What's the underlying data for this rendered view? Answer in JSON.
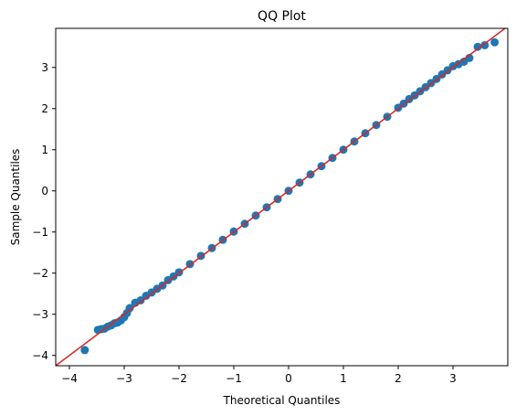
{
  "chart_data": {
    "type": "scatter",
    "title": "QQ Plot",
    "xlabel": "Theoretical Quantiles",
    "ylabel": "Sample Quantiles",
    "xlim": [
      -4.25,
      4.0
    ],
    "ylim": [
      -4.25,
      3.95
    ],
    "xticks": [
      -4,
      -3,
      -2,
      -1,
      0,
      1,
      2,
      3
    ],
    "yticks": [
      -4,
      -3,
      -2,
      -1,
      0,
      1,
      2,
      3
    ],
    "xtick_labels": [
      "−4",
      "−3",
      "−2",
      "−1",
      "0",
      "1",
      "2",
      "3"
    ],
    "ytick_labels": [
      "−4",
      "−3",
      "−2",
      "−1",
      "0",
      "1",
      "2",
      "3"
    ],
    "grid": false,
    "series": [
      {
        "kind": "points",
        "color": "#1f77b4",
        "x": [
          -3.72,
          -3.48,
          -3.42,
          -3.36,
          -3.3,
          -3.24,
          -3.18,
          -3.12,
          -3.06,
          -3.0,
          -2.95,
          -2.9,
          -2.8,
          -2.7,
          -2.6,
          -2.5,
          -2.4,
          -2.3,
          -2.2,
          -2.1,
          -2.0,
          -1.8,
          -1.6,
          -1.4,
          -1.2,
          -1.0,
          -0.8,
          -0.6,
          -0.4,
          -0.2,
          0.0,
          0.2,
          0.4,
          0.6,
          0.8,
          1.0,
          1.2,
          1.4,
          1.6,
          1.8,
          2.0,
          2.1,
          2.2,
          2.3,
          2.4,
          2.5,
          2.6,
          2.7,
          2.8,
          2.9,
          3.0,
          3.1,
          3.2,
          3.3,
          3.45,
          3.58,
          3.76
        ],
        "y": [
          -3.87,
          -3.38,
          -3.36,
          -3.35,
          -3.3,
          -3.27,
          -3.22,
          -3.2,
          -3.15,
          -3.07,
          -2.97,
          -2.85,
          -2.72,
          -2.66,
          -2.55,
          -2.47,
          -2.38,
          -2.3,
          -2.17,
          -2.08,
          -1.98,
          -1.78,
          -1.58,
          -1.39,
          -1.19,
          -0.99,
          -0.8,
          -0.6,
          -0.4,
          -0.2,
          0.0,
          0.2,
          0.4,
          0.6,
          0.8,
          1.0,
          1.2,
          1.4,
          1.6,
          1.8,
          2.02,
          2.12,
          2.23,
          2.32,
          2.42,
          2.52,
          2.62,
          2.72,
          2.83,
          2.93,
          3.03,
          3.08,
          3.14,
          3.23,
          3.5,
          3.54,
          3.61
        ]
      },
      {
        "kind": "reference-line",
        "color": "#d62728",
        "x": [
          -4.25,
          4.0
        ],
        "y": [
          -4.25,
          4.0
        ]
      }
    ]
  }
}
